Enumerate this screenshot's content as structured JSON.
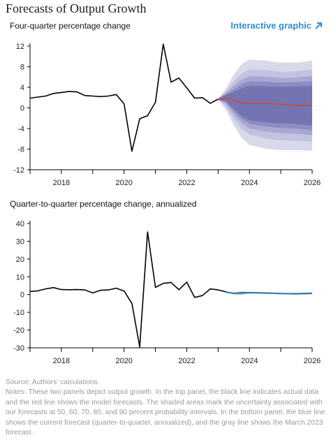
{
  "header": {
    "title": "Forecasts of Output Growth",
    "interactive_label": "Interactive graphic",
    "interactive_icon": "arrow-up-right-icon",
    "accent_color": "#2f8fcf"
  },
  "chart_data": [
    {
      "type": "line",
      "title": "Four-quarter percentage change",
      "ylim": [
        -12,
        12
      ],
      "yticks": [
        12,
        8,
        4,
        0,
        -4,
        -8,
        -12
      ],
      "xlim": [
        2017.0,
        2026.0
      ],
      "xticks": [
        2018,
        2020,
        2022,
        2024,
        2026
      ],
      "grid": false,
      "series": [
        {
          "color": "#000000",
          "points": [
            [
              2017.0,
              1.9
            ],
            [
              2017.25,
              2.1
            ],
            [
              2017.5,
              2.3
            ],
            [
              2017.75,
              2.8
            ],
            [
              2018.0,
              3.0
            ],
            [
              2018.25,
              3.2
            ],
            [
              2018.5,
              3.1
            ],
            [
              2018.75,
              2.4
            ],
            [
              2019.0,
              2.3
            ],
            [
              2019.25,
              2.2
            ],
            [
              2019.5,
              2.3
            ],
            [
              2019.75,
              2.6
            ],
            [
              2020.0,
              0.8
            ],
            [
              2020.25,
              -8.4
            ],
            [
              2020.5,
              -2.1
            ],
            [
              2020.75,
              -1.5
            ],
            [
              2021.0,
              1.1
            ],
            [
              2021.25,
              12.4
            ],
            [
              2021.5,
              5.0
            ],
            [
              2021.75,
              5.8
            ],
            [
              2022.0,
              3.9
            ],
            [
              2022.25,
              1.9
            ],
            [
              2022.5,
              2.0
            ],
            [
              2022.75,
              0.9
            ],
            [
              2023.0,
              1.7
            ]
          ]
        },
        {
          "color": "#c0504d",
          "points": [
            [
              2023.0,
              1.7
            ],
            [
              2023.25,
              1.9
            ],
            [
              2023.5,
              1.5
            ],
            [
              2023.75,
              1.0
            ],
            [
              2024.0,
              0.9
            ],
            [
              2024.5,
              0.9
            ],
            [
              2025.0,
              0.7
            ],
            [
              2025.5,
              0.5
            ],
            [
              2026.0,
              0.5
            ]
          ]
        }
      ],
      "bands": {
        "x": [
          2023.0,
          2023.25,
          2023.5,
          2023.75,
          2024.0,
          2024.5,
          2025.0,
          2025.5,
          2026.0
        ],
        "levels": [
          {
            "probability": 90,
            "color": "#d9d9ec",
            "upper": [
              1.8,
              3.8,
              6.5,
              8.5,
              9.4,
              9.2,
              8.8,
              8.8,
              9.2
            ],
            "lower": [
              1.6,
              -0.4,
              -3.4,
              -5.8,
              -7.2,
              -7.9,
              -8.2,
              -8.2,
              -8.3
            ]
          },
          {
            "probability": 80,
            "color": "#c3c3e1",
            "upper": [
              1.8,
              3.2,
              5.2,
              6.7,
              7.5,
              7.4,
              7.0,
              7.1,
              7.5
            ],
            "lower": [
              1.6,
              0.3,
              -2.2,
              -4.1,
              -5.2,
              -5.9,
              -6.3,
              -6.4,
              -6.6
            ]
          },
          {
            "probability": 70,
            "color": "#a8a8d3",
            "upper": [
              1.8,
              2.9,
              4.3,
              5.5,
              6.2,
              6.1,
              5.8,
              5.9,
              6.2
            ],
            "lower": [
              1.6,
              0.8,
              -1.3,
              -3.0,
              -4.0,
              -4.6,
              -4.9,
              -5.0,
              -5.3
            ]
          },
          {
            "probability": 60,
            "color": "#8d8dc3",
            "upper": [
              1.8,
              2.7,
              3.6,
              4.6,
              5.2,
              5.1,
              4.9,
              5.0,
              5.2
            ],
            "lower": [
              1.6,
              1.1,
              -0.7,
              -2.2,
              -3.1,
              -3.6,
              -3.9,
              -4.0,
              -4.3
            ]
          },
          {
            "probability": 50,
            "color": "#7474b2",
            "upper": [
              1.8,
              2.5,
              3.1,
              3.8,
              4.3,
              4.2,
              4.1,
              4.2,
              4.3
            ],
            "lower": [
              1.6,
              1.3,
              -0.2,
              -1.6,
              -2.4,
              -2.8,
              -3.0,
              -3.1,
              -3.4
            ]
          }
        ]
      }
    },
    {
      "type": "line",
      "title": "Quarter-to-quarter percentage change, annualized",
      "ylim": [
        -30,
        40
      ],
      "yticks": [
        40,
        30,
        20,
        10,
        0,
        -10,
        -20,
        -30
      ],
      "xlim": [
        2017.0,
        2026.0
      ],
      "xticks": [
        2018,
        2020,
        2022,
        2024,
        2026
      ],
      "grid": false,
      "series": [
        {
          "color": "#000000",
          "points": [
            [
              2017.0,
              1.7
            ],
            [
              2017.25,
              2.1
            ],
            [
              2017.5,
              3.2
            ],
            [
              2017.75,
              3.9
            ],
            [
              2018.0,
              2.8
            ],
            [
              2018.25,
              2.7
            ],
            [
              2018.5,
              2.8
            ],
            [
              2018.75,
              2.6
            ],
            [
              2019.0,
              0.9
            ],
            [
              2019.25,
              2.4
            ],
            [
              2019.5,
              2.6
            ],
            [
              2019.75,
              3.6
            ],
            [
              2020.0,
              2.0
            ],
            [
              2020.25,
              -5.0
            ],
            [
              2020.5,
              -29.5
            ],
            [
              2020.75,
              35.3
            ],
            [
              2021.0,
              4.0
            ],
            [
              2021.25,
              6.3
            ],
            [
              2021.5,
              6.8
            ],
            [
              2021.75,
              2.7
            ],
            [
              2022.0,
              7.0
            ],
            [
              2022.25,
              -1.6
            ],
            [
              2022.5,
              -0.6
            ],
            [
              2022.75,
              3.2
            ],
            [
              2023.0,
              2.6
            ],
            [
              2023.25,
              1.5
            ]
          ]
        },
        {
          "color": "#999999",
          "points": [
            [
              2023.25,
              1.5
            ],
            [
              2023.5,
              0.5
            ],
            [
              2023.75,
              0.4
            ],
            [
              2024.0,
              1.0
            ],
            [
              2024.5,
              0.8
            ],
            [
              2025.0,
              0.6
            ],
            [
              2025.5,
              0.3
            ],
            [
              2026.0,
              0.6
            ]
          ]
        },
        {
          "color": "#2a7fb2",
          "points": [
            [
              2023.25,
              1.3
            ],
            [
              2023.5,
              0.7
            ],
            [
              2023.75,
              1.2
            ],
            [
              2024.0,
              1.1
            ],
            [
              2024.5,
              0.9
            ],
            [
              2025.0,
              0.6
            ],
            [
              2025.5,
              0.5
            ],
            [
              2026.0,
              0.8
            ]
          ]
        }
      ]
    }
  ],
  "notes": {
    "source": "Source: Authors’ calculations.",
    "text": "Notes: These two panels depict output growth. In the top panel, the black line indicates actual data and the red line shows the model forecasts. The shaded areas mark the uncertainty associated with our forecasts at 50, 60, 70, 80, and 90 percent probability intervals. In the bottom panel, the blue line shows the current forecast (quarter-to-quarter, annualized), and the gray line shows the March 2023 forecast."
  }
}
